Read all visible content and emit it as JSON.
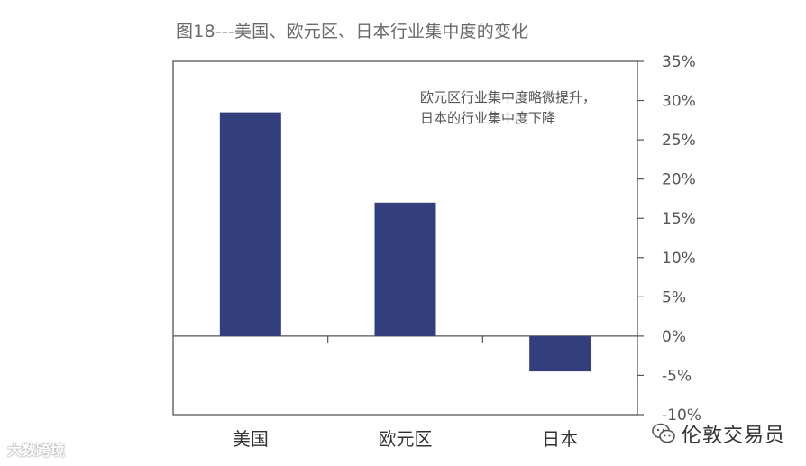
{
  "chart_data": {
    "type": "bar",
    "title": "图18---美国、欧元区、日本行业集中度的变化",
    "categories": [
      "美国",
      "欧元区",
      "日本"
    ],
    "values": [
      28.5,
      17,
      -4.5
    ],
    "ylim": [
      -10,
      35
    ],
    "yticks": [
      35,
      30,
      25,
      20,
      15,
      10,
      5,
      0,
      -5,
      -10
    ],
    "ytick_labels": [
      "35%",
      "30%",
      "25%",
      "20%",
      "15%",
      "10%",
      "5%",
      "0%",
      "-5%",
      "-10%"
    ],
    "y_axis_position": "right",
    "grid": false,
    "legend": "none",
    "annotation": [
      "欧元区行业集中度略微提升，",
      "日本的行业集中度下降"
    ],
    "bar_color": "#333f7c"
  },
  "watermarks": {
    "left": "大数跨境",
    "right": "伦敦交易员"
  }
}
